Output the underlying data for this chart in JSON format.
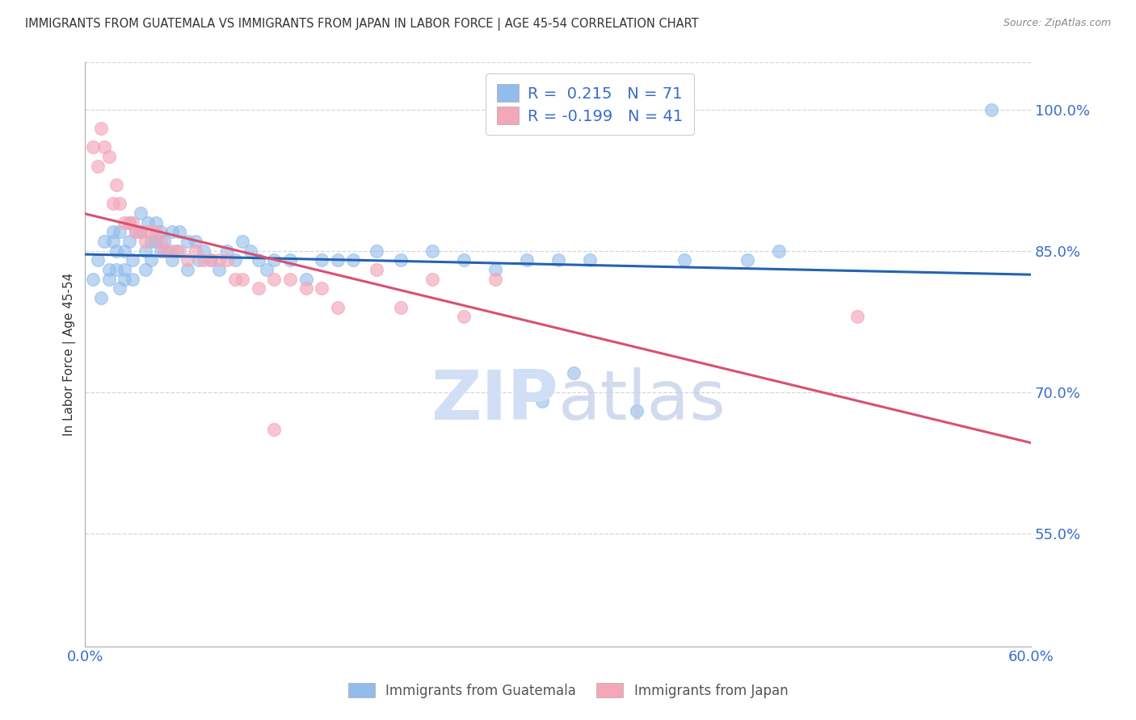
{
  "title": "IMMIGRANTS FROM GUATEMALA VS IMMIGRANTS FROM JAPAN IN LABOR FORCE | AGE 45-54 CORRELATION CHART",
  "source_text": "Source: ZipAtlas.com",
  "ylabel": "In Labor Force | Age 45-54",
  "xlim": [
    0.0,
    0.6
  ],
  "ylim": [
    0.43,
    1.05
  ],
  "yticks": [
    0.55,
    0.7,
    0.85,
    1.0
  ],
  "ytick_labels": [
    "55.0%",
    "70.0%",
    "85.0%",
    "100.0%"
  ],
  "xticks": [
    0.0,
    0.1,
    0.2,
    0.3,
    0.4,
    0.5,
    0.6
  ],
  "xtick_labels": [
    "0.0%",
    "",
    "",
    "",
    "",
    "",
    "60.0%"
  ],
  "r_guatemala": 0.215,
  "n_guatemala": 71,
  "r_japan": -0.199,
  "n_japan": 41,
  "blue_color": "#92BCEA",
  "pink_color": "#F4A7B9",
  "blue_line_color": "#2563B0",
  "pink_line_color": "#D95070",
  "axis_color": "#3B6CC9",
  "title_color": "#333333",
  "watermark_color": "#D0DFF5",
  "grid_color": "#CCCCCC",
  "guatemala_x": [
    0.005,
    0.008,
    0.01,
    0.012,
    0.015,
    0.015,
    0.018,
    0.018,
    0.02,
    0.02,
    0.022,
    0.022,
    0.025,
    0.025,
    0.025,
    0.028,
    0.028,
    0.03,
    0.03,
    0.032,
    0.035,
    0.035,
    0.038,
    0.038,
    0.04,
    0.042,
    0.042,
    0.045,
    0.045,
    0.048,
    0.048,
    0.05,
    0.052,
    0.055,
    0.055,
    0.058,
    0.06,
    0.065,
    0.065,
    0.07,
    0.072,
    0.075,
    0.08,
    0.085,
    0.09,
    0.095,
    0.1,
    0.105,
    0.11,
    0.115,
    0.12,
    0.13,
    0.14,
    0.15,
    0.16,
    0.17,
    0.185,
    0.2,
    0.22,
    0.24,
    0.26,
    0.28,
    0.3,
    0.32,
    0.38,
    0.42,
    0.44,
    0.31,
    0.35,
    0.29,
    0.575
  ],
  "guatemala_y": [
    0.82,
    0.84,
    0.8,
    0.86,
    0.83,
    0.82,
    0.87,
    0.86,
    0.85,
    0.83,
    0.81,
    0.87,
    0.85,
    0.83,
    0.82,
    0.88,
    0.86,
    0.84,
    0.82,
    0.87,
    0.89,
    0.87,
    0.85,
    0.83,
    0.88,
    0.86,
    0.84,
    0.88,
    0.86,
    0.87,
    0.85,
    0.86,
    0.85,
    0.87,
    0.84,
    0.85,
    0.87,
    0.86,
    0.83,
    0.86,
    0.84,
    0.85,
    0.84,
    0.83,
    0.85,
    0.84,
    0.86,
    0.85,
    0.84,
    0.83,
    0.84,
    0.84,
    0.82,
    0.84,
    0.84,
    0.84,
    0.85,
    0.84,
    0.85,
    0.84,
    0.83,
    0.84,
    0.84,
    0.84,
    0.84,
    0.84,
    0.85,
    0.72,
    0.68,
    0.69,
    1.0
  ],
  "japan_x": [
    0.005,
    0.008,
    0.01,
    0.012,
    0.015,
    0.018,
    0.02,
    0.022,
    0.025,
    0.028,
    0.03,
    0.032,
    0.035,
    0.038,
    0.04,
    0.045,
    0.048,
    0.05,
    0.055,
    0.06,
    0.065,
    0.07,
    0.075,
    0.08,
    0.085,
    0.09,
    0.095,
    0.1,
    0.11,
    0.12,
    0.13,
    0.14,
    0.15,
    0.16,
    0.185,
    0.2,
    0.22,
    0.24,
    0.26,
    0.49,
    0.12
  ],
  "japan_y": [
    0.96,
    0.94,
    0.98,
    0.96,
    0.95,
    0.9,
    0.92,
    0.9,
    0.88,
    0.88,
    0.88,
    0.87,
    0.87,
    0.86,
    0.87,
    0.87,
    0.86,
    0.85,
    0.85,
    0.85,
    0.84,
    0.85,
    0.84,
    0.84,
    0.84,
    0.84,
    0.82,
    0.82,
    0.81,
    0.82,
    0.82,
    0.81,
    0.81,
    0.79,
    0.83,
    0.79,
    0.82,
    0.78,
    0.82,
    0.78,
    0.66
  ]
}
